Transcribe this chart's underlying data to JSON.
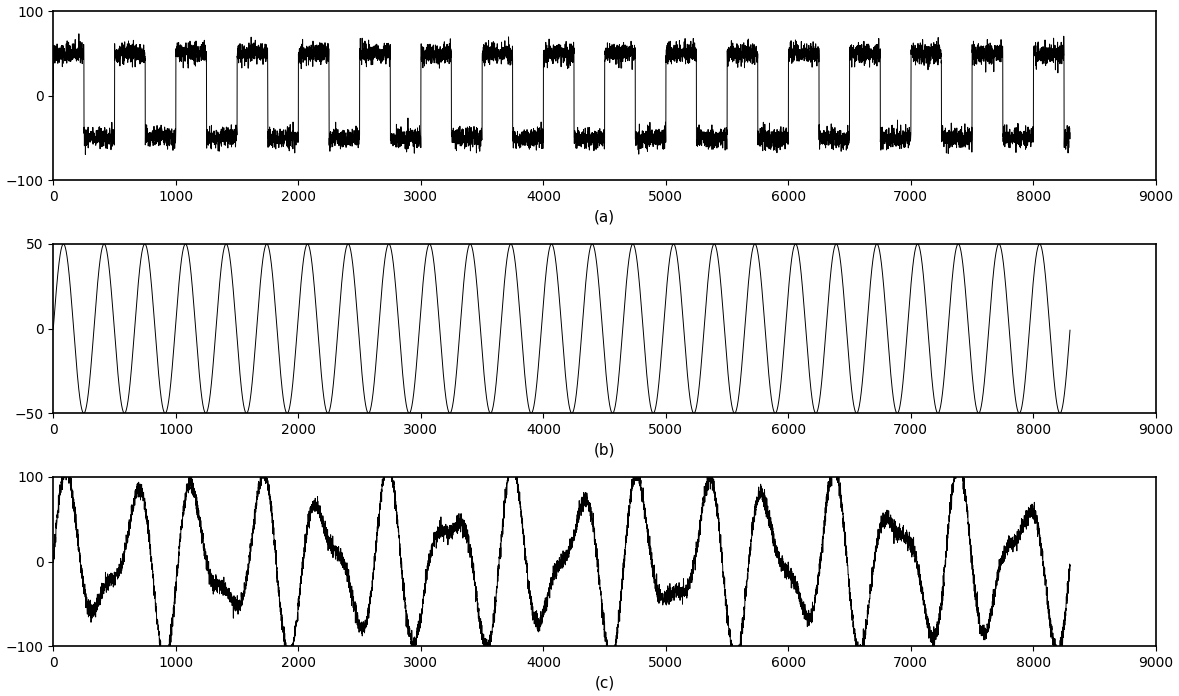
{
  "n_samples": 8300,
  "xlim": [
    0,
    9000
  ],
  "xticks": [
    0,
    1000,
    2000,
    3000,
    4000,
    5000,
    6000,
    7000,
    8000,
    9000
  ],
  "plot_a": {
    "square_amplitude": 50,
    "noise_amplitude": 6,
    "square_period": 500,
    "ylim": [
      -100,
      100
    ],
    "yticks": [
      -100,
      0,
      100
    ],
    "label": "(a)"
  },
  "plot_b": {
    "sine_amplitude": 50,
    "sine_freq_cycles": 25,
    "ylim": [
      -50,
      50
    ],
    "yticks": [
      -50,
      0,
      50
    ],
    "label": "(b)"
  },
  "plot_c": {
    "sine1_amplitude": 75,
    "sine1_freq_cycles": 16,
    "sine2_amplitude": 40,
    "sine2_freq_cycles": 25,
    "noise_amplitude": 5,
    "ylim": [
      -100,
      100
    ],
    "yticks": [
      -100,
      0,
      100
    ],
    "label": "(c)"
  },
  "line_color": "#000000",
  "line_width": 0.7,
  "bg_color": "#ffffff",
  "font_size": 10,
  "label_fontsize": 11
}
